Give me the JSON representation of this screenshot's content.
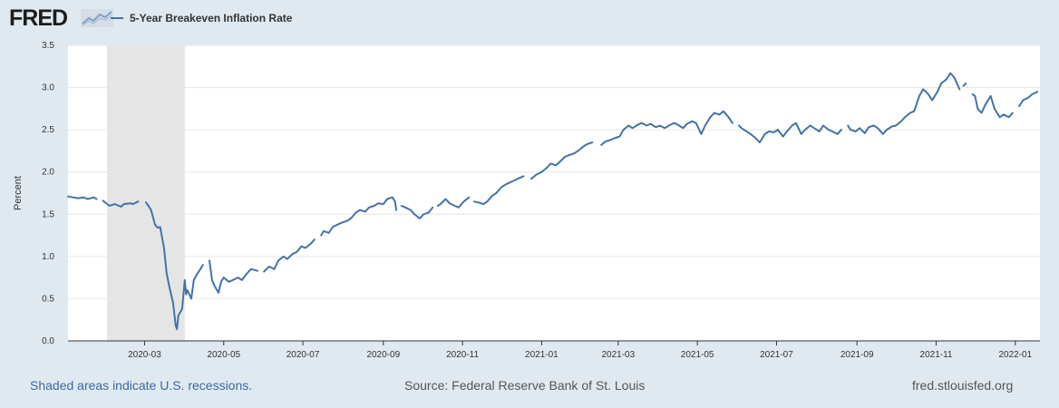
{
  "header": {
    "logo_text": "FRED",
    "legend_label": "5-Year Breakeven Inflation Rate"
  },
  "footer": {
    "recession_note": "Shaded areas indicate U.S. recessions.",
    "source": "Source: Federal Reserve Bank of St. Louis",
    "url": "fred.stlouisfed.org"
  },
  "colors": {
    "series": "#4572a7",
    "recession_shade": "#e5e5e5",
    "background": "#e1e9f0",
    "plot_background": "#ffffff",
    "grid": "#e6e6e6"
  },
  "chart_data": {
    "type": "line",
    "title": "",
    "xlabel": "",
    "ylabel": "Percent",
    "x_start": "2020-01-02",
    "x_end": "2022-01-20",
    "ylim": [
      0,
      3.5
    ],
    "yticks": [
      "0.0",
      "0.5",
      "1.0",
      "1.5",
      "2.0",
      "2.5",
      "3.0",
      "3.5"
    ],
    "xticks": [
      {
        "date": "2020-03-01",
        "label": "2020-03"
      },
      {
        "date": "2020-05-01",
        "label": "2020-05"
      },
      {
        "date": "2020-07-01",
        "label": "2020-07"
      },
      {
        "date": "2020-09-01",
        "label": "2020-09"
      },
      {
        "date": "2020-11-01",
        "label": "2020-11"
      },
      {
        "date": "2021-01-01",
        "label": "2021-01"
      },
      {
        "date": "2021-03-01",
        "label": "2021-03"
      },
      {
        "date": "2021-05-01",
        "label": "2021-05"
      },
      {
        "date": "2021-07-01",
        "label": "2021-07"
      },
      {
        "date": "2021-09-01",
        "label": "2021-09"
      },
      {
        "date": "2021-11-01",
        "label": "2021-11"
      },
      {
        "date": "2022-01-01",
        "label": "2022-01"
      }
    ],
    "grid": true,
    "recessions": [
      {
        "start": "2020-02-01",
        "end": "2020-04-01"
      }
    ],
    "series": [
      {
        "name": "5-Year Breakeven Inflation Rate",
        "segments": [
          [
            [
              "2020-01-02",
              1.71
            ],
            [
              "2020-01-06",
              1.7
            ],
            [
              "2020-01-10",
              1.69
            ],
            [
              "2020-01-14",
              1.7
            ],
            [
              "2020-01-17",
              1.68
            ],
            [
              "2020-01-22",
              1.7
            ],
            [
              "2020-01-24",
              1.68
            ]
          ],
          [
            [
              "2020-01-29",
              1.66
            ],
            [
              "2020-02-03",
              1.6
            ],
            [
              "2020-02-07",
              1.62
            ],
            [
              "2020-02-12",
              1.59
            ],
            [
              "2020-02-14",
              1.62
            ],
            [
              "2020-02-19",
              1.63
            ],
            [
              "2020-02-21",
              1.62
            ],
            [
              "2020-02-25",
              1.65
            ]
          ],
          [
            [
              "2020-03-02",
              1.64
            ],
            [
              "2020-03-04",
              1.6
            ],
            [
              "2020-03-06",
              1.55
            ],
            [
              "2020-03-09",
              1.38
            ],
            [
              "2020-03-11",
              1.34
            ],
            [
              "2020-03-13",
              1.35
            ],
            [
              "2020-03-16",
              1.1
            ],
            [
              "2020-03-18",
              0.8
            ],
            [
              "2020-03-20",
              0.65
            ],
            [
              "2020-03-23",
              0.45
            ],
            [
              "2020-03-25",
              0.18
            ],
            [
              "2020-03-26",
              0.14
            ],
            [
              "2020-03-27",
              0.3
            ],
            [
              "2020-03-30",
              0.38
            ],
            [
              "2020-04-01",
              0.72
            ],
            [
              "2020-04-02",
              0.55
            ],
            [
              "2020-04-03",
              0.6
            ],
            [
              "2020-04-06",
              0.5
            ],
            [
              "2020-04-08",
              0.72
            ],
            [
              "2020-04-10",
              0.78
            ],
            [
              "2020-04-13",
              0.85
            ],
            [
              "2020-04-15",
              0.9
            ]
          ],
          [
            [
              "2020-04-20",
              0.95
            ],
            [
              "2020-04-22",
              0.72
            ],
            [
              "2020-04-24",
              0.65
            ],
            [
              "2020-04-27",
              0.57
            ],
            [
              "2020-04-29",
              0.7
            ],
            [
              "2020-05-01",
              0.75
            ],
            [
              "2020-05-05",
              0.7
            ],
            [
              "2020-05-08",
              0.72
            ],
            [
              "2020-05-12",
              0.75
            ],
            [
              "2020-05-15",
              0.72
            ],
            [
              "2020-05-19",
              0.8
            ],
            [
              "2020-05-22",
              0.85
            ],
            [
              "2020-05-27",
              0.83
            ]
          ],
          [
            [
              "2020-06-01",
              0.82
            ],
            [
              "2020-06-05",
              0.88
            ],
            [
              "2020-06-09",
              0.85
            ],
            [
              "2020-06-12",
              0.95
            ],
            [
              "2020-06-16",
              1.0
            ],
            [
              "2020-06-19",
              0.97
            ],
            [
              "2020-06-23",
              1.03
            ],
            [
              "2020-06-26",
              1.05
            ],
            [
              "2020-06-30",
              1.12
            ],
            [
              "2020-07-03",
              1.1
            ],
            [
              "2020-07-07",
              1.15
            ],
            [
              "2020-07-10",
              1.2
            ]
          ],
          [
            [
              "2020-07-15",
              1.25
            ],
            [
              "2020-07-17",
              1.3
            ],
            [
              "2020-07-21",
              1.28
            ],
            [
              "2020-07-24",
              1.35
            ],
            [
              "2020-07-28",
              1.38
            ],
            [
              "2020-07-31",
              1.4
            ],
            [
              "2020-08-04",
              1.42
            ],
            [
              "2020-08-07",
              1.45
            ],
            [
              "2020-08-11",
              1.52
            ],
            [
              "2020-08-14",
              1.55
            ],
            [
              "2020-08-18",
              1.53
            ],
            [
              "2020-08-21",
              1.58
            ],
            [
              "2020-08-25",
              1.6
            ],
            [
              "2020-08-28",
              1.63
            ],
            [
              "2020-09-01",
              1.62
            ],
            [
              "2020-09-04",
              1.68
            ],
            [
              "2020-09-08",
              1.7
            ],
            [
              "2020-09-10",
              1.65
            ],
            [
              "2020-09-11",
              1.55
            ]
          ],
          [
            [
              "2020-09-15",
              1.6
            ],
            [
              "2020-09-18",
              1.58
            ],
            [
              "2020-09-22",
              1.55
            ],
            [
              "2020-09-25",
              1.5
            ],
            [
              "2020-09-29",
              1.45
            ],
            [
              "2020-10-02",
              1.5
            ],
            [
              "2020-10-06",
              1.52
            ],
            [
              "2020-10-09",
              1.58
            ]
          ],
          [
            [
              "2020-10-13",
              1.6
            ],
            [
              "2020-10-15",
              1.62
            ],
            [
              "2020-10-19",
              1.68
            ],
            [
              "2020-10-22",
              1.63
            ],
            [
              "2020-10-26",
              1.6
            ],
            [
              "2020-10-29",
              1.58
            ],
            [
              "2020-11-02",
              1.65
            ],
            [
              "2020-11-06",
              1.7
            ]
          ],
          [
            [
              "2020-11-10",
              1.65
            ],
            [
              "2020-11-13",
              1.64
            ],
            [
              "2020-11-17",
              1.62
            ],
            [
              "2020-11-20",
              1.65
            ],
            [
              "2020-11-24",
              1.72
            ],
            [
              "2020-11-27",
              1.75
            ],
            [
              "2020-12-01",
              1.82
            ],
            [
              "2020-12-04",
              1.85
            ],
            [
              "2020-12-08",
              1.88
            ],
            [
              "2020-12-11",
              1.9
            ],
            [
              "2020-12-15",
              1.93
            ],
            [
              "2020-12-18",
              1.95
            ]
          ],
          [
            [
              "2020-12-24",
              1.92
            ],
            [
              "2020-12-28",
              1.97
            ],
            [
              "2021-01-01",
              2.0
            ],
            [
              "2021-01-05",
              2.05
            ],
            [
              "2021-01-08",
              2.1
            ],
            [
              "2021-01-12",
              2.08
            ],
            [
              "2021-01-15",
              2.12
            ],
            [
              "2021-01-19",
              2.18
            ],
            [
              "2021-01-22",
              2.2
            ],
            [
              "2021-01-26",
              2.22
            ],
            [
              "2021-01-29",
              2.25
            ],
            [
              "2021-02-02",
              2.3
            ],
            [
              "2021-02-05",
              2.33
            ],
            [
              "2021-02-09",
              2.35
            ]
          ],
          [
            [
              "2021-02-16",
              2.32
            ],
            [
              "2021-02-19",
              2.36
            ],
            [
              "2021-02-23",
              2.38
            ],
            [
              "2021-02-26",
              2.4
            ],
            [
              "2021-03-02",
              2.42
            ],
            [
              "2021-03-05",
              2.5
            ],
            [
              "2021-03-09",
              2.55
            ],
            [
              "2021-03-12",
              2.52
            ],
            [
              "2021-03-16",
              2.56
            ],
            [
              "2021-03-19",
              2.58
            ],
            [
              "2021-03-23",
              2.55
            ],
            [
              "2021-03-26",
              2.57
            ],
            [
              "2021-03-30",
              2.53
            ],
            [
              "2021-04-02",
              2.55
            ],
            [
              "2021-04-06",
              2.52
            ],
            [
              "2021-04-09",
              2.55
            ],
            [
              "2021-04-13",
              2.58
            ],
            [
              "2021-04-16",
              2.56
            ],
            [
              "2021-04-20",
              2.52
            ],
            [
              "2021-04-23",
              2.57
            ],
            [
              "2021-04-27",
              2.6
            ],
            [
              "2021-04-30",
              2.58
            ],
            [
              "2021-05-04",
              2.45
            ],
            [
              "2021-05-07",
              2.55
            ],
            [
              "2021-05-11",
              2.65
            ],
            [
              "2021-05-14",
              2.7
            ],
            [
              "2021-05-18",
              2.68
            ],
            [
              "2021-05-21",
              2.72
            ],
            [
              "2021-05-25",
              2.65
            ],
            [
              "2021-05-28",
              2.58
            ]
          ],
          [
            [
              "2021-06-02",
              2.55
            ],
            [
              "2021-06-04",
              2.52
            ],
            [
              "2021-06-08",
              2.48
            ],
            [
              "2021-06-11",
              2.45
            ],
            [
              "2021-06-15",
              2.4
            ],
            [
              "2021-06-18",
              2.35
            ],
            [
              "2021-06-22",
              2.45
            ],
            [
              "2021-06-25",
              2.48
            ],
            [
              "2021-06-29",
              2.47
            ],
            [
              "2021-07-02",
              2.5
            ],
            [
              "2021-07-06",
              2.42
            ],
            [
              "2021-07-09",
              2.48
            ],
            [
              "2021-07-13",
              2.55
            ],
            [
              "2021-07-16",
              2.58
            ],
            [
              "2021-07-20",
              2.45
            ],
            [
              "2021-07-23",
              2.5
            ],
            [
              "2021-07-27",
              2.55
            ],
            [
              "2021-07-30",
              2.52
            ],
            [
              "2021-08-03",
              2.48
            ],
            [
              "2021-08-06",
              2.55
            ],
            [
              "2021-08-10",
              2.5
            ],
            [
              "2021-08-13",
              2.48
            ],
            [
              "2021-08-17",
              2.45
            ],
            [
              "2021-08-20",
              2.5
            ]
          ],
          [
            [
              "2021-08-25",
              2.55
            ],
            [
              "2021-08-27",
              2.5
            ],
            [
              "2021-08-31",
              2.48
            ],
            [
              "2021-09-03",
              2.52
            ],
            [
              "2021-09-07",
              2.46
            ],
            [
              "2021-09-10",
              2.53
            ],
            [
              "2021-09-14",
              2.55
            ],
            [
              "2021-09-17",
              2.52
            ],
            [
              "2021-09-21",
              2.45
            ],
            [
              "2021-09-24",
              2.5
            ],
            [
              "2021-09-28",
              2.54
            ],
            [
              "2021-10-01",
              2.55
            ],
            [
              "2021-10-05",
              2.6
            ],
            [
              "2021-10-08",
              2.65
            ],
            [
              "2021-10-12",
              2.7
            ],
            [
              "2021-10-15",
              2.72
            ],
            [
              "2021-10-19",
              2.9
            ],
            [
              "2021-10-22",
              2.98
            ],
            [
              "2021-10-26",
              2.92
            ],
            [
              "2021-10-29",
              2.85
            ],
            [
              "2021-11-02",
              2.95
            ],
            [
              "2021-11-05",
              3.05
            ],
            [
              "2021-11-09",
              3.1
            ],
            [
              "2021-11-12",
              3.17
            ],
            [
              "2021-11-15",
              3.12
            ],
            [
              "2021-11-17",
              3.05
            ],
            [
              "2021-11-19",
              2.98
            ]
          ],
          [
            [
              "2021-11-22",
              3.02
            ],
            [
              "2021-11-24",
              3.05
            ]
          ],
          [
            [
              "2021-11-29",
              2.92
            ],
            [
              "2021-12-01",
              2.9
            ],
            [
              "2021-12-03",
              2.75
            ],
            [
              "2021-12-06",
              2.7
            ],
            [
              "2021-12-09",
              2.8
            ],
            [
              "2021-12-13",
              2.9
            ],
            [
              "2021-12-16",
              2.75
            ],
            [
              "2021-12-20",
              2.65
            ],
            [
              "2021-12-23",
              2.68
            ],
            [
              "2021-12-27",
              2.65
            ],
            [
              "2021-12-30",
              2.7
            ]
          ],
          [
            [
              "2022-01-04",
              2.78
            ],
            [
              "2022-01-07",
              2.85
            ],
            [
              "2022-01-11",
              2.88
            ],
            [
              "2022-01-14",
              2.92
            ],
            [
              "2022-01-18",
              2.95
            ]
          ]
        ]
      }
    ]
  }
}
